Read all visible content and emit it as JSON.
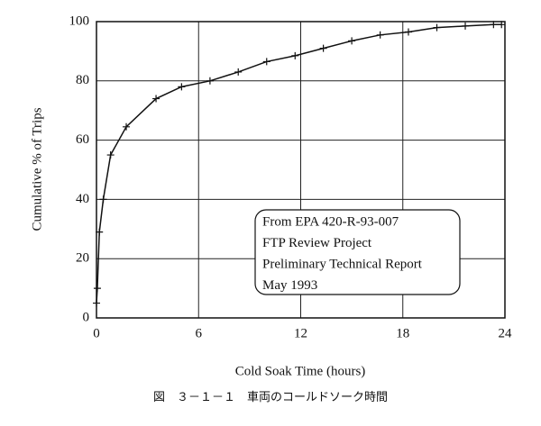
{
  "chart_data": {
    "type": "line",
    "xlabel": "Cold Soak Time (hours)",
    "ylabel": "Cumulative % of Trips",
    "caption": "図　３－１－１　車両のコールドソーク時間",
    "annotation": [
      "From EPA 420-R-93-007",
      "FTP Review Project",
      "Preliminary Technical Report",
      "May 1993"
    ],
    "x": [
      0,
      0.05,
      0.17,
      0.4,
      0.83,
      1.75,
      3.5,
      5,
      6.67,
      8.33,
      10,
      11.67,
      13.33,
      15,
      16.67,
      18.33,
      20,
      21.67,
      23.33,
      23.8
    ],
    "series": [
      {
        "color": "#111111",
        "values": [
          5,
          10,
          29,
          40,
          55,
          64.5,
          74,
          78,
          80,
          83,
          86.5,
          88.5,
          91,
          93.5,
          95.5,
          96.5,
          98,
          98.5,
          99,
          99
        ]
      }
    ],
    "xlim": [
      0,
      24
    ],
    "xticks": [
      0,
      6,
      12,
      18,
      24
    ],
    "ylim": [
      0,
      100
    ],
    "yticks": [
      0,
      20,
      40,
      60,
      80,
      100
    ],
    "grid": true
  }
}
